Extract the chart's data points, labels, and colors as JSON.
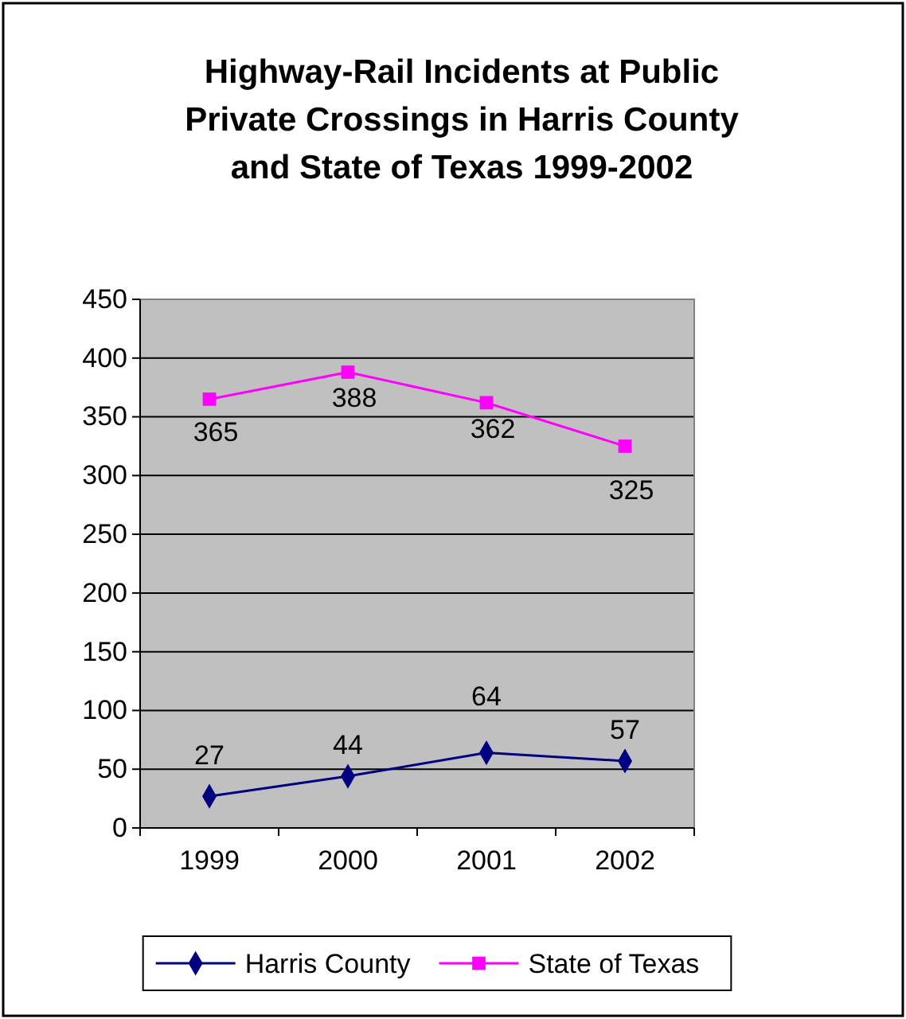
{
  "chart_data": {
    "type": "line",
    "title": "Highway-Rail Incidents at Public Private Crossings in Harris County and State of Texas 1999-2002",
    "categories": [
      "1999",
      "2000",
      "2001",
      "2002"
    ],
    "series": [
      {
        "name": "Harris County",
        "color": "#000080",
        "marker": "diamond",
        "values": [
          27,
          44,
          64,
          57
        ]
      },
      {
        "name": "State of Texas",
        "color": "#ff00ff",
        "marker": "square",
        "values": [
          365,
          388,
          362,
          325
        ]
      }
    ],
    "ylim": [
      0,
      450
    ],
    "yticks": [
      0,
      50,
      100,
      150,
      200,
      250,
      300,
      350,
      400,
      450
    ],
    "grid": "y",
    "legend": "bottom",
    "data_labels": true
  }
}
